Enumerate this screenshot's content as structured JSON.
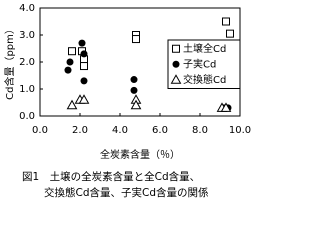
{
  "chart_data": {
    "type": "scatter",
    "xlabel": "全炭素含量（％）",
    "ylabel": "Cd含量（ppm）",
    "caption": [
      "図1　土壌の全炭素含量と全Cd含量、",
      "交換態Cd含量、子実Cd含量の関係"
    ],
    "xlim": [
      0,
      10
    ],
    "ylim": [
      0,
      4
    ],
    "xticks": [
      {
        "value": 0,
        "label": "0.0"
      },
      {
        "value": 2,
        "label": "2.0"
      },
      {
        "value": 4,
        "label": "4.0"
      },
      {
        "value": 6,
        "label": "6.0"
      },
      {
        "value": 8,
        "label": "8.0"
      },
      {
        "value": 10,
        "label": "10.0"
      }
    ],
    "yticks": [
      {
        "value": 0,
        "label": "0.0"
      },
      {
        "value": 1,
        "label": "1.0"
      },
      {
        "value": 2,
        "label": "2.0"
      },
      {
        "value": 3,
        "label": "3.0"
      },
      {
        "value": 4,
        "label": "4.0"
      }
    ],
    "legend": "upper right",
    "series": [
      {
        "name": "土壌全Cd",
        "marker": "square",
        "color": "#000000",
        "x": [
          1.6,
          2.1,
          2.2,
          2.2,
          4.8,
          4.8,
          9.3,
          9.5
        ],
        "values": [
          2.4,
          2.4,
          2.1,
          1.85,
          3.0,
          2.85,
          3.5,
          3.05
        ]
      },
      {
        "name": "子実Cd",
        "marker": "circle",
        "color": "#000000",
        "x": [
          1.5,
          1.4,
          2.1,
          2.2,
          2.2,
          4.7,
          4.7,
          9.2,
          9.4
        ],
        "values": [
          2.0,
          1.7,
          2.7,
          2.3,
          1.3,
          1.35,
          0.95,
          0.3,
          0.3
        ]
      },
      {
        "name": "交換態Cd",
        "marker": "triangle",
        "color": "#000000",
        "x": [
          1.6,
          2.0,
          2.2,
          4.8,
          4.8,
          9.1,
          9.3
        ],
        "values": [
          0.4,
          0.6,
          0.6,
          0.6,
          0.4,
          0.3,
          0.3
        ]
      }
    ]
  }
}
